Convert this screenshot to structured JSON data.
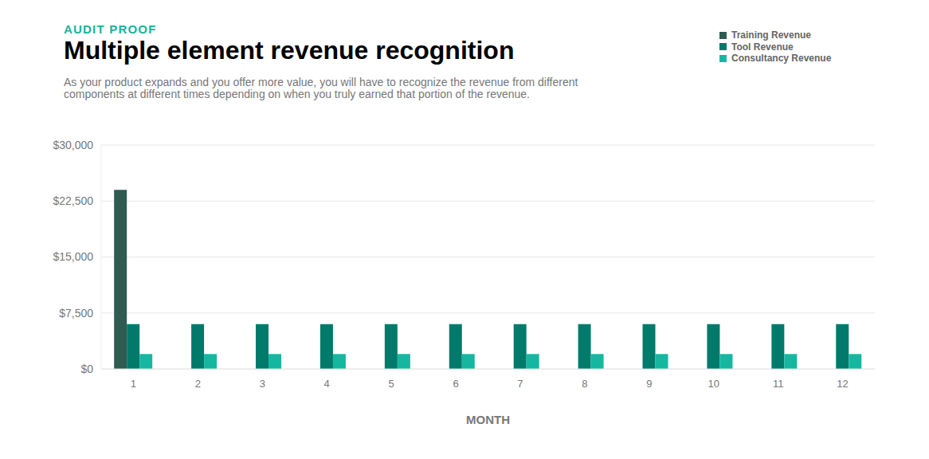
{
  "chart_data": {
    "type": "bar",
    "annotations": [
      "AUDIT PROOF"
    ],
    "title": "Multiple element revenue recognition",
    "subtitle": "As your product expands and you offer more value, you will have to recognize the revenue from different components at different times depending on when you truly earned that portion of the revenue.",
    "x_label": "MONTH",
    "categories": [
      "1",
      "2",
      "3",
      "4",
      "5",
      "6",
      "7",
      "8",
      "9",
      "10",
      "11",
      "12"
    ],
    "series": [
      {
        "name": "Training Revenue",
        "color": "#2f5b51",
        "values": [
          24000,
          0,
          0,
          0,
          0,
          0,
          0,
          0,
          0,
          0,
          0,
          0
        ]
      },
      {
        "name": "Tool Revenue",
        "color": "#007a6b",
        "values": [
          6000,
          6000,
          6000,
          6000,
          6000,
          6000,
          6000,
          6000,
          6000,
          6000,
          6000,
          6000
        ]
      },
      {
        "name": "Consultancy Revenue",
        "color": "#16b7a0",
        "values": [
          2000,
          2000,
          2000,
          2000,
          2000,
          2000,
          2000,
          2000,
          2000,
          2000,
          2000,
          2000
        ]
      }
    ],
    "ylim": [
      0,
      30000
    ],
    "yticks": [
      {
        "value": 0,
        "label": "$0"
      },
      {
        "value": 7500,
        "label": "$7,500"
      },
      {
        "value": 15000,
        "label": "$15,000"
      },
      {
        "value": 22500,
        "label": "$22,500"
      },
      {
        "value": 30000,
        "label": "$30,000"
      }
    ],
    "grid": true,
    "legend": "top-right"
  }
}
